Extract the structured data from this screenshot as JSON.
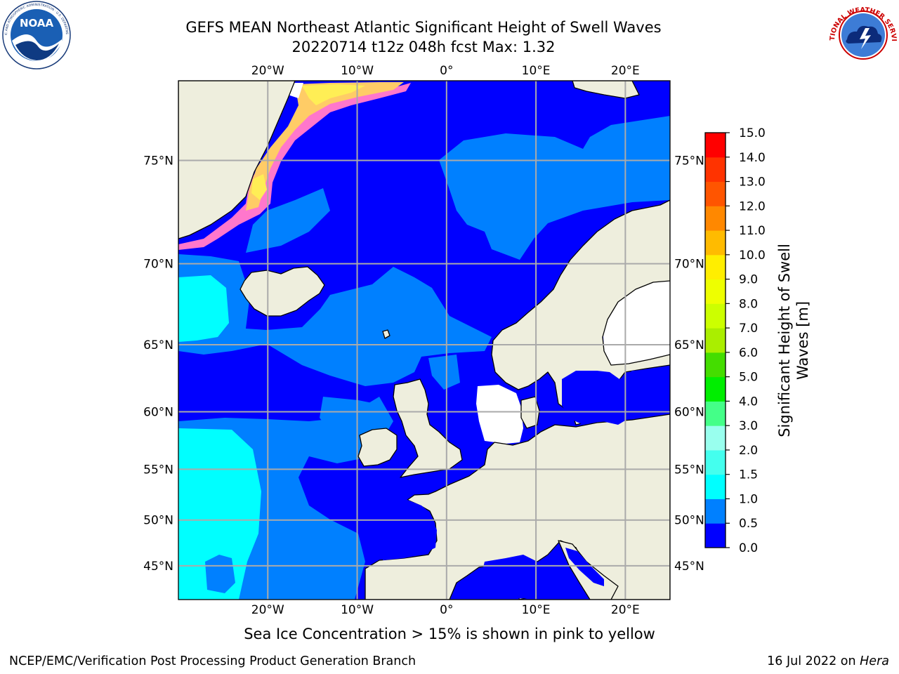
{
  "title": {
    "line1": "GEFS MEAN Northeast Atlantic Significant Height of Swell Waves",
    "line2": "20220714 t12z 048h fcst   Max: 1.32"
  },
  "logos": {
    "left": {
      "name": "noaa-logo",
      "text": "NOAA",
      "ring_text": "NATIONAL OCEANIC AND ATMOSPHERIC ADMINISTRATION · U.S. DEPARTMENT OF COMMERCE"
    },
    "right": {
      "name": "nws-logo",
      "ring_text": "NATIONAL WEATHER SERVICE"
    }
  },
  "map": {
    "projection": "lat-lon",
    "region": "Northeast Atlantic",
    "lon_range": [
      -30,
      25
    ],
    "lat_range": [
      41,
      78
    ],
    "lon_ticks": [
      {
        "value": -20,
        "label": "20°W"
      },
      {
        "value": -10,
        "label": "10°W"
      },
      {
        "value": 0,
        "label": "0°"
      },
      {
        "value": 10,
        "label": "10°E"
      },
      {
        "value": 20,
        "label": "20°E"
      }
    ],
    "lat_ticks": [
      {
        "value": 75,
        "label": "75°N"
      },
      {
        "value": 70,
        "label": "70°N"
      },
      {
        "value": 65,
        "label": "65°N"
      },
      {
        "value": 60,
        "label": "60°N"
      },
      {
        "value": 55,
        "label": "55°N"
      },
      {
        "value": 50,
        "label": "50°N"
      },
      {
        "value": 45,
        "label": "45°N"
      }
    ],
    "grid": true,
    "colors": {
      "land": "#eeeedd",
      "sea_ice_low": "#ff66cc",
      "sea_ice_high": "#ffee33",
      "no_data": "#ffffff"
    }
  },
  "colorbar": {
    "label": "Significant Height of Swell Waves [m]",
    "label_lines": [
      "Significant Height of Swell",
      "Waves [m]"
    ],
    "ticks": [
      "0.0",
      "0.5",
      "1.0",
      "1.5",
      "2.0",
      "3.0",
      "4.0",
      "5.0",
      "6.0",
      "7.0",
      "8.0",
      "9.0",
      "10.0",
      "11.0",
      "12.0",
      "13.0",
      "14.0",
      "15.0"
    ],
    "bins": [
      {
        "from": 0.0,
        "to": 0.5,
        "color": "#0000ff"
      },
      {
        "from": 0.5,
        "to": 1.0,
        "color": "#0080ff"
      },
      {
        "from": 1.0,
        "to": 1.5,
        "color": "#00ffff"
      },
      {
        "from": 1.5,
        "to": 2.0,
        "color": "#44ffee"
      },
      {
        "from": 2.0,
        "to": 3.0,
        "color": "#99ffee"
      },
      {
        "from": 3.0,
        "to": 4.0,
        "color": "#44ff88"
      },
      {
        "from": 4.0,
        "to": 5.0,
        "color": "#00ee00"
      },
      {
        "from": 5.0,
        "to": 6.0,
        "color": "#44dd00"
      },
      {
        "from": 6.0,
        "to": 7.0,
        "color": "#aaee00"
      },
      {
        "from": 7.0,
        "to": 8.0,
        "color": "#ccff00"
      },
      {
        "from": 8.0,
        "to": 9.0,
        "color": "#eeff00"
      },
      {
        "from": 9.0,
        "to": 10.0,
        "color": "#ffee00"
      },
      {
        "from": 10.0,
        "to": 11.0,
        "color": "#ffbb00"
      },
      {
        "from": 11.0,
        "to": 12.0,
        "color": "#ff8800"
      },
      {
        "from": 12.0,
        "to": 13.0,
        "color": "#ff5500"
      },
      {
        "from": 13.0,
        "to": 14.0,
        "color": "#ff3300"
      },
      {
        "from": 14.0,
        "to": 15.0,
        "color": "#ff0000"
      }
    ]
  },
  "footer": {
    "note": "Sea Ice Concentration > 15% is shown in pink to yellow",
    "credit": "NCEP/EMC/Verification Post Processing Product Generation Branch",
    "date": "16 Jul 2022 on",
    "host": "Hera"
  }
}
